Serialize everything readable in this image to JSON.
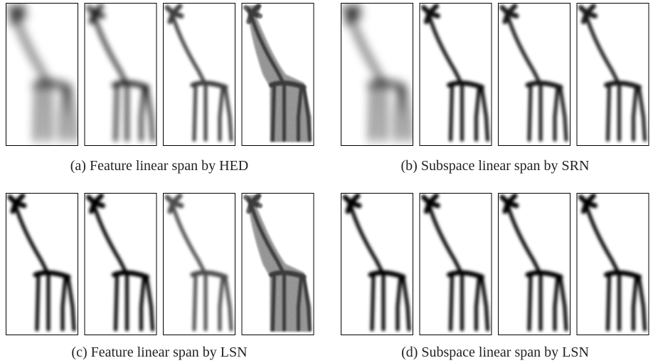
{
  "figure": {
    "captions": [
      "(a) Feature linear span by HED",
      "(b) Subspace linear span by SRN",
      "(c) Feature linear span by LSN",
      "(d) Subspace linear span by LSN"
    ]
  }
}
